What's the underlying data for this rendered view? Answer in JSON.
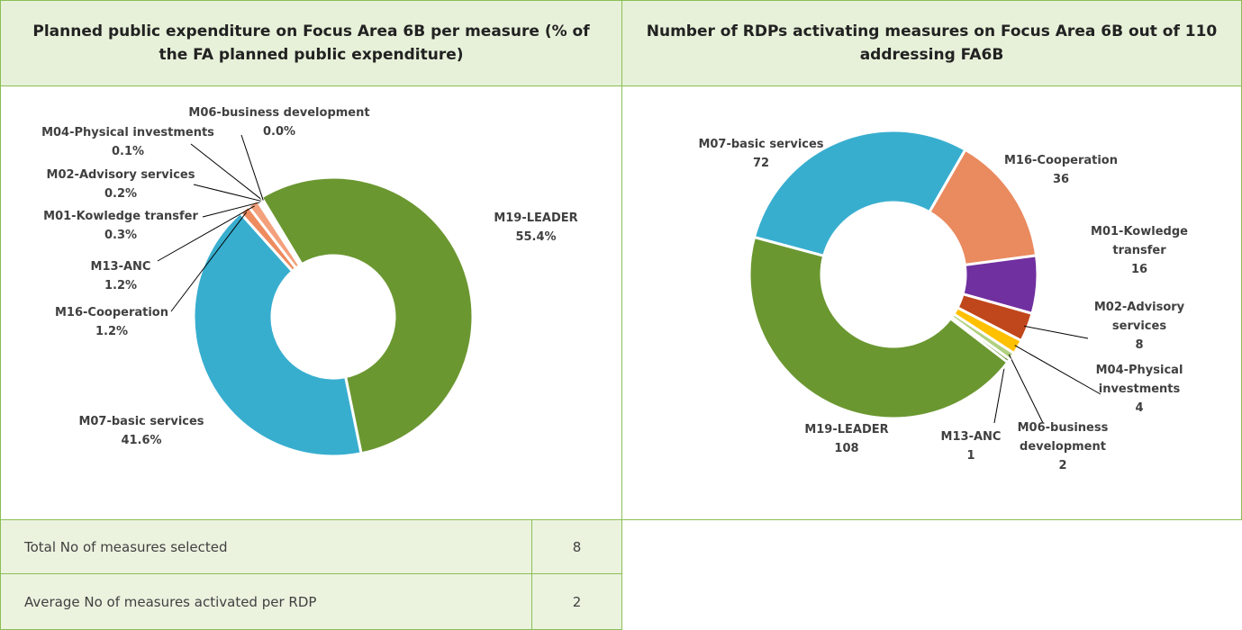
{
  "chart_data": [
    {
      "type": "donut",
      "title": "Planned public expenditure on Focus Area 6B per measure (% of the FA planned public expenditure)",
      "categories": [
        "M19-LEADER",
        "M07-basic services",
        "M16-Cooperation",
        "M13-ANC",
        "M01-Kowledge transfer",
        "M02-Advisory services",
        "M04-Physical investments",
        "M06-business development"
      ],
      "values": [
        55.4,
        41.6,
        1.2,
        1.2,
        0.3,
        0.2,
        0.1,
        0.0
      ],
      "value_labels": [
        "55.4%",
        "41.6%",
        "1.2%",
        "1.2%",
        "0.3%",
        "0.2%",
        "0.1%",
        "0.0%"
      ],
      "colors": [
        "#6b9731",
        "#38aecf",
        "#ee8b5f",
        "#f3a07c",
        "#7030a0",
        "#1f6fb5",
        "#2a62a8",
        "#9bbb59"
      ]
    },
    {
      "type": "donut",
      "title": "Number of RDPs activating measures on Focus Area 6B out of 110 addressing FA6B",
      "categories": [
        "M07-basic services",
        "M16-Cooperation",
        "M01-Kowledge transfer",
        "M02-Advisory services",
        "M04-Physical investments",
        "M06-business development",
        "M13-ANC",
        "M19-LEADER"
      ],
      "values": [
        72,
        36,
        16,
        8,
        4,
        2,
        1,
        108
      ],
      "colors": [
        "#38aecf",
        "#ea8a5f",
        "#7030a0",
        "#c0461b",
        "#ffc000",
        "#b0d080",
        "#6b9731",
        "#6b9731"
      ]
    }
  ],
  "table": {
    "rows": [
      [
        "Total No of measures selected",
        "8"
      ],
      [
        "Average No of measures activated per RDP",
        "2"
      ]
    ]
  }
}
